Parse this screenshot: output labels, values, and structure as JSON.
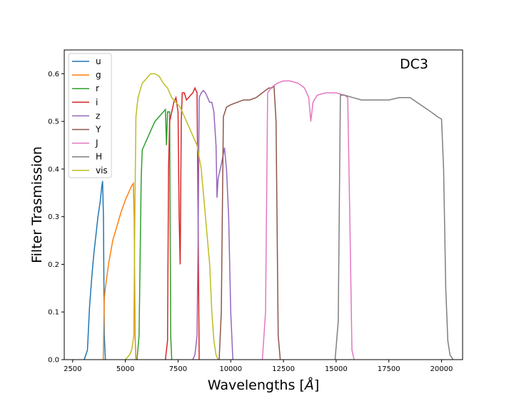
{
  "chart_data": {
    "type": "line",
    "title": "",
    "annotation": "DC3",
    "xlabel": "Wavelengths [",
    "xlabel_unit": "Å",
    "xlabel_close": "]",
    "ylabel": "Filter Trasmission",
    "xlim": [
      2100,
      21000
    ],
    "ylim": [
      0,
      0.65
    ],
    "xticks": [
      2500,
      5000,
      7500,
      10000,
      12500,
      15000,
      17500,
      20000
    ],
    "yticks": [
      0.0,
      0.1,
      0.2,
      0.3,
      0.4,
      0.5,
      0.6
    ],
    "xtick_labels": [
      "2500",
      "5000",
      "7500",
      "10000",
      "12500",
      "15000",
      "17500",
      "20000"
    ],
    "ytick_labels": [
      "0.0",
      "0.1",
      "0.2",
      "0.3",
      "0.4",
      "0.5",
      "0.6"
    ],
    "grid": false,
    "legend_position": "upper-left",
    "series": [
      {
        "name": "u",
        "color": "#1f77b4",
        "x": [
          3050,
          3200,
          3300,
          3400,
          3500,
          3600,
          3700,
          3800,
          3870,
          3920,
          3960,
          4000,
          4050
        ],
        "y": [
          0.0,
          0.02,
          0.11,
          0.17,
          0.22,
          0.26,
          0.3,
          0.33,
          0.36,
          0.375,
          0.3,
          0.05,
          0.0
        ]
      },
      {
        "name": "g",
        "color": "#ff7f0e",
        "x": [
          3950,
          4000,
          4050,
          4200,
          4400,
          4600,
          4800,
          5000,
          5200,
          5300,
          5380,
          5420,
          5460,
          5500
        ],
        "y": [
          0.0,
          0.13,
          0.15,
          0.2,
          0.25,
          0.28,
          0.31,
          0.335,
          0.355,
          0.365,
          0.37,
          0.3,
          0.05,
          0.0
        ]
      },
      {
        "name": "r",
        "color": "#2ca02c",
        "x": [
          5550,
          5650,
          5750,
          5800,
          5900,
          6000,
          6200,
          6400,
          6600,
          6800,
          6900,
          6950,
          7000,
          7050,
          7100,
          7150,
          7200
        ],
        "y": [
          0.0,
          0.05,
          0.38,
          0.44,
          0.45,
          0.46,
          0.48,
          0.5,
          0.51,
          0.52,
          0.525,
          0.45,
          0.52,
          0.52,
          0.52,
          0.05,
          0.0
        ]
      },
      {
        "name": "i",
        "color": "#d62728",
        "x": [
          6900,
          7000,
          7050,
          7100,
          7200,
          7300,
          7400,
          7500,
          7550,
          7600,
          7650,
          7700,
          7800,
          7900,
          8000,
          8100,
          8200,
          8300,
          8400,
          8450,
          8500
        ],
        "y": [
          0.0,
          0.04,
          0.4,
          0.5,
          0.52,
          0.54,
          0.55,
          0.52,
          0.3,
          0.2,
          0.5,
          0.56,
          0.56,
          0.545,
          0.55,
          0.555,
          0.56,
          0.57,
          0.56,
          0.3,
          0.0
        ]
      },
      {
        "name": "z",
        "color": "#9467bd",
        "x": [
          8200,
          8300,
          8400,
          8450,
          8500,
          8600,
          8700,
          8800,
          8900,
          9000,
          9100,
          9200,
          9300,
          9350,
          9400,
          9500,
          9600,
          9700,
          9800,
          9900,
          10000,
          10100
        ],
        "y": [
          0.0,
          0.01,
          0.05,
          0.25,
          0.55,
          0.56,
          0.565,
          0.56,
          0.55,
          0.54,
          0.54,
          0.52,
          0.45,
          0.34,
          0.38,
          0.4,
          0.42,
          0.445,
          0.4,
          0.3,
          0.1,
          0.0
        ]
      },
      {
        "name": "Y",
        "color": "#8c564b",
        "x": [
          9450,
          9550,
          9650,
          9800,
          10000,
          10300,
          10600,
          10900,
          11200,
          11500,
          11800,
          11950,
          12050,
          12150,
          12250,
          12350
        ],
        "y": [
          0.0,
          0.1,
          0.51,
          0.53,
          0.535,
          0.54,
          0.545,
          0.545,
          0.55,
          0.56,
          0.57,
          0.57,
          0.575,
          0.5,
          0.05,
          0.0
        ]
      },
      {
        "name": "J",
        "color": "#e377c2",
        "x": [
          11500,
          11650,
          11750,
          11900,
          12200,
          12500,
          12800,
          13200,
          13500,
          13700,
          13800,
          13900,
          14100,
          14500,
          15000,
          15400,
          15550,
          15650,
          15750,
          15850
        ],
        "y": [
          0.0,
          0.1,
          0.56,
          0.57,
          0.58,
          0.585,
          0.585,
          0.58,
          0.57,
          0.55,
          0.5,
          0.54,
          0.555,
          0.56,
          0.56,
          0.555,
          0.55,
          0.3,
          0.02,
          0.0
        ]
      },
      {
        "name": "H",
        "color": "#7f7f7f",
        "x": [
          14950,
          15100,
          15200,
          15400,
          15800,
          16200,
          16600,
          17000,
          17500,
          18000,
          18500,
          19000,
          19500,
          19800,
          20000,
          20100,
          20200,
          20300,
          20400,
          20550
        ],
        "y": [
          0.0,
          0.08,
          0.555,
          0.555,
          0.55,
          0.545,
          0.545,
          0.545,
          0.545,
          0.55,
          0.55,
          0.535,
          0.52,
          0.51,
          0.505,
          0.4,
          0.15,
          0.04,
          0.01,
          0.0
        ]
      },
      {
        "name": "vis",
        "color": "#bcbd22",
        "x": [
          5000,
          5200,
          5300,
          5400,
          5450,
          5500,
          5600,
          5800,
          6000,
          6200,
          6400,
          6600,
          6800,
          7000,
          7200,
          7400,
          7600,
          7800,
          8000,
          8200,
          8400,
          8600,
          8800,
          9000,
          9100,
          9200,
          9300,
          9400
        ],
        "y": [
          0.0,
          0.01,
          0.02,
          0.05,
          0.3,
          0.51,
          0.55,
          0.58,
          0.59,
          0.6,
          0.6,
          0.595,
          0.58,
          0.57,
          0.55,
          0.54,
          0.53,
          0.51,
          0.49,
          0.47,
          0.45,
          0.4,
          0.3,
          0.2,
          0.1,
          0.04,
          0.01,
          0.0
        ]
      }
    ]
  }
}
